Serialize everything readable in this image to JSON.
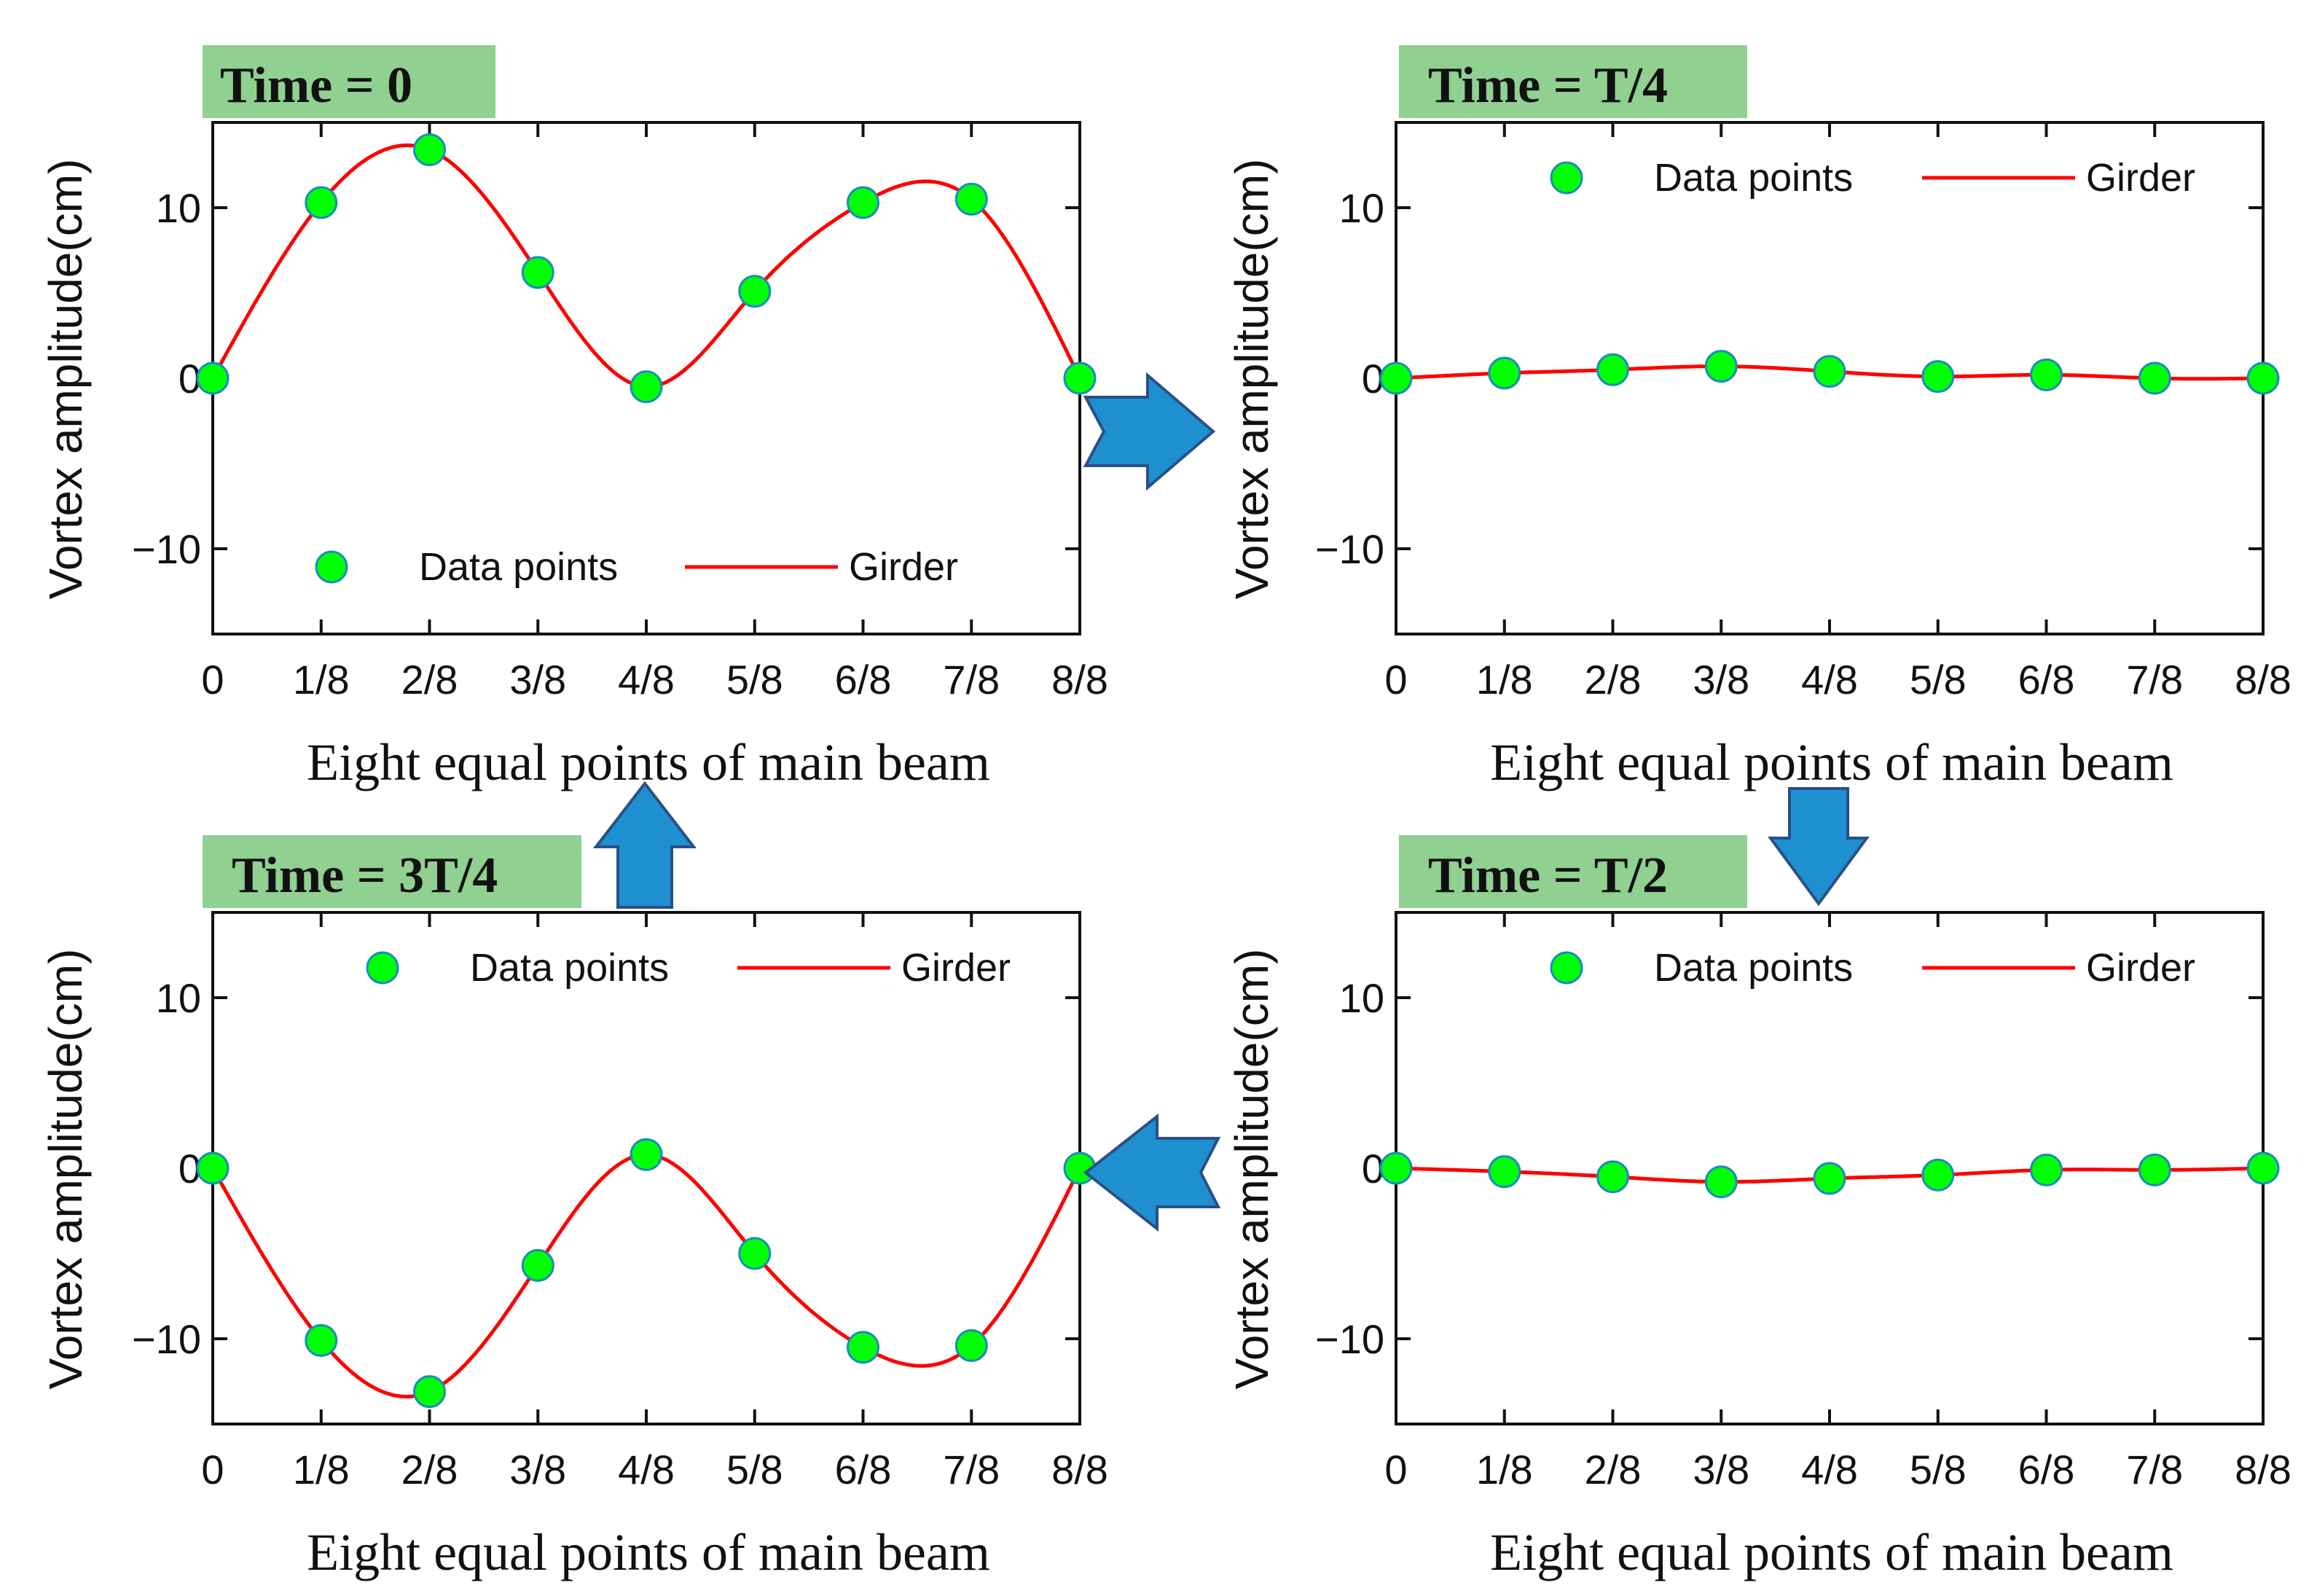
{
  "colors": {
    "girder_line": "#ff0000",
    "marker_fill": "#00ff00",
    "marker_edge": "#1a8cc2",
    "title_bg": "#90d090",
    "arrow_fill": "#1e90d0",
    "arrow_edge": "#2a4f86",
    "axis": "#111111"
  },
  "chart_data": [
    {
      "type": "line",
      "title": "Time = 0",
      "xlabel": "Eight equal points of main beam",
      "ylabel": "Vortex amplitude(cm)",
      "categories": [
        "0",
        "1/8",
        "2/8",
        "3/8",
        "4/8",
        "5/8",
        "6/8",
        "7/8",
        "8/8"
      ],
      "x": [
        0,
        0.125,
        0.25,
        0.375,
        0.5,
        0.625,
        0.75,
        0.875,
        1
      ],
      "yticks": [
        10,
        0,
        -10
      ],
      "ytick_labels": [
        "10",
        "0",
        "−10"
      ],
      "ylim": [
        -15,
        15
      ],
      "legend": [
        "Data points",
        "Girder"
      ],
      "legend_position": "bottom",
      "series": [
        {
          "name": "Data points",
          "kind": "scatter",
          "values": [
            0,
            10.3,
            13.4,
            6.2,
            -0.5,
            5.1,
            10.3,
            10.5,
            0
          ]
        },
        {
          "name": "Girder",
          "kind": "line",
          "values": [
            0,
            10.3,
            13.4,
            6.2,
            -0.5,
            5.1,
            10.3,
            10.5,
            0
          ]
        }
      ]
    },
    {
      "type": "line",
      "title": "Time = T/4",
      "xlabel": "Eight equal points of main beam",
      "ylabel": "Vortex amplitude(cm)",
      "categories": [
        "0",
        "1/8",
        "2/8",
        "3/8",
        "4/8",
        "5/8",
        "6/8",
        "7/8",
        "8/8"
      ],
      "x": [
        0,
        0.125,
        0.25,
        0.375,
        0.5,
        0.625,
        0.75,
        0.875,
        1
      ],
      "yticks": [
        10,
        0,
        -10
      ],
      "ytick_labels": [
        "10",
        "0",
        "−10"
      ],
      "ylim": [
        -15,
        15
      ],
      "legend": [
        "Data points",
        "Girder"
      ],
      "legend_position": "top",
      "series": [
        {
          "name": "Data points",
          "kind": "scatter",
          "values": [
            0,
            0.3,
            0.5,
            0.7,
            0.4,
            0.1,
            0.2,
            0,
            0
          ]
        },
        {
          "name": "Girder",
          "kind": "line",
          "values": [
            0,
            0.3,
            0.5,
            0.7,
            0.4,
            0.1,
            0.2,
            0,
            0
          ]
        }
      ]
    },
    {
      "type": "line",
      "title": "Time = 3T/4",
      "xlabel": "Eight equal points of main beam",
      "ylabel": "Vortex amplitude(cm)",
      "categories": [
        "0",
        "1/8",
        "2/8",
        "3/8",
        "4/8",
        "5/8",
        "6/8",
        "7/8",
        "8/8"
      ],
      "x": [
        0,
        0.125,
        0.25,
        0.375,
        0.5,
        0.625,
        0.75,
        0.875,
        1
      ],
      "yticks": [
        10,
        0,
        -10
      ],
      "ytick_labels": [
        "10",
        "0",
        "−10"
      ],
      "ylim": [
        -15,
        15
      ],
      "legend": [
        "Data points",
        "Girder"
      ],
      "legend_position": "top",
      "series": [
        {
          "name": "Data points",
          "kind": "scatter",
          "values": [
            0,
            -10.1,
            -13.1,
            -5.7,
            0.8,
            -5,
            -10.5,
            -10.4,
            0
          ]
        },
        {
          "name": "Girder",
          "kind": "line",
          "values": [
            0,
            -10.1,
            -13.1,
            -5.7,
            0.8,
            -5,
            -10.5,
            -10.4,
            0
          ]
        }
      ]
    },
    {
      "type": "line",
      "title": "Time = T/2",
      "xlabel": "Eight equal points of main beam",
      "ylabel": "Vortex amplitude(cm)",
      "categories": [
        "0",
        "1/8",
        "2/8",
        "3/8",
        "4/8",
        "5/8",
        "6/8",
        "7/8",
        "8/8"
      ],
      "x": [
        0,
        0.125,
        0.25,
        0.375,
        0.5,
        0.625,
        0.75,
        0.875,
        1
      ],
      "yticks": [
        10,
        0,
        -10
      ],
      "ytick_labels": [
        "10",
        "0",
        "−10"
      ],
      "ylim": [
        -15,
        15
      ],
      "legend": [
        "Data points",
        "Girder"
      ],
      "legend_position": "top",
      "series": [
        {
          "name": "Data points",
          "kind": "scatter",
          "values": [
            0,
            -0.2,
            -0.5,
            -0.8,
            -0.6,
            -0.4,
            -0.1,
            -0.1,
            0
          ]
        },
        {
          "name": "Girder",
          "kind": "line",
          "values": [
            0,
            -0.2,
            -0.5,
            -0.8,
            -0.6,
            -0.4,
            -0.1,
            -0.1,
            0
          ]
        }
      ]
    }
  ]
}
